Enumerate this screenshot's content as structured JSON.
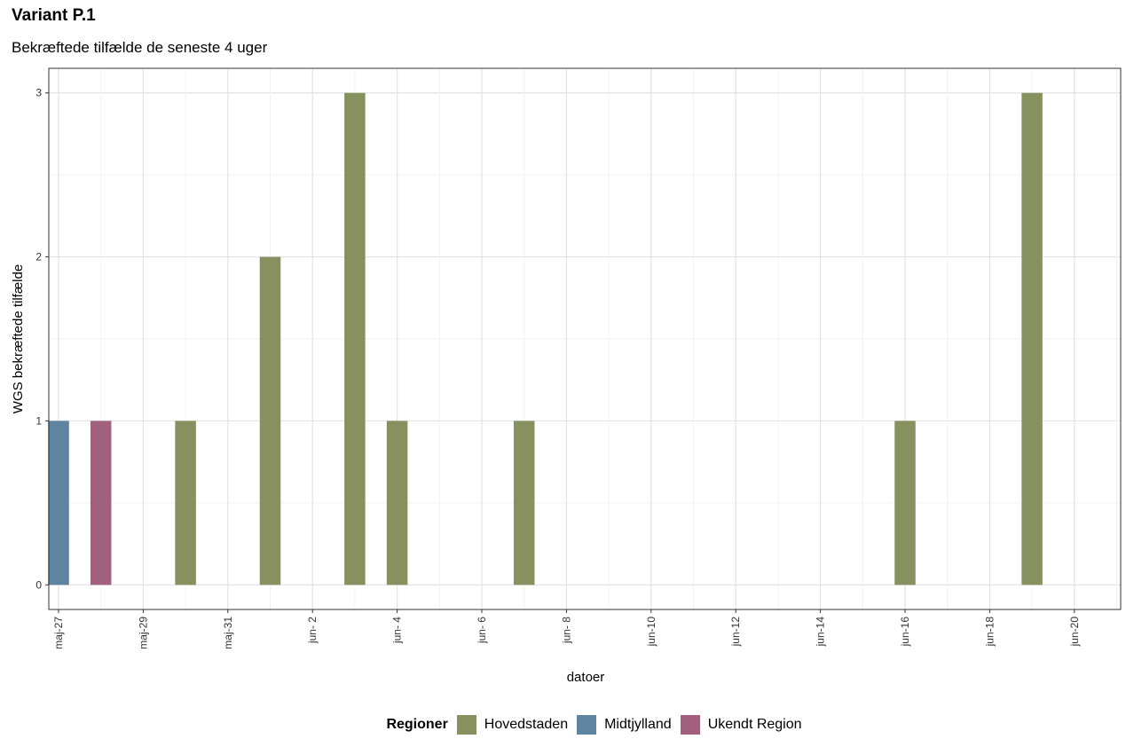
{
  "chart_data": {
    "type": "bar",
    "title": "Variant P.1",
    "subtitle": "Bekræftede tilfælde de seneste 4 uger",
    "xlabel": "datoer",
    "ylabel": "WGS bekræftede tilfælde",
    "ylim": [
      -0.15,
      3.15
    ],
    "yticks": [
      0,
      1,
      2,
      3
    ],
    "grid": true,
    "legend_position": "bottom",
    "legend_title": "Regioner",
    "x_start": "2021-05-27",
    "x_end": "2021-06-21",
    "x_tick_labels": [
      "maj-27",
      "maj-29",
      "maj-31",
      "jun- 2",
      "jun- 4",
      "jun- 6",
      "jun- 8",
      "jun-10",
      "jun-12",
      "jun-14",
      "jun-16",
      "jun-18",
      "jun-20"
    ],
    "series": [
      {
        "name": "Hovedstaden",
        "color": "#87915F",
        "points": [
          {
            "date": "2021-05-30",
            "value": 1
          },
          {
            "date": "2021-06-01",
            "value": 2
          },
          {
            "date": "2021-06-03",
            "value": 3
          },
          {
            "date": "2021-06-04",
            "value": 1
          },
          {
            "date": "2021-06-07",
            "value": 1
          },
          {
            "date": "2021-06-16",
            "value": 1
          },
          {
            "date": "2021-06-19",
            "value": 3
          }
        ]
      },
      {
        "name": "Midtjylland",
        "color": "#5F849F",
        "points": [
          {
            "date": "2021-05-27",
            "value": 1
          }
        ]
      },
      {
        "name": "Ukendt Region",
        "color": "#A0607E",
        "points": [
          {
            "date": "2021-05-28",
            "value": 1
          }
        ]
      }
    ]
  }
}
